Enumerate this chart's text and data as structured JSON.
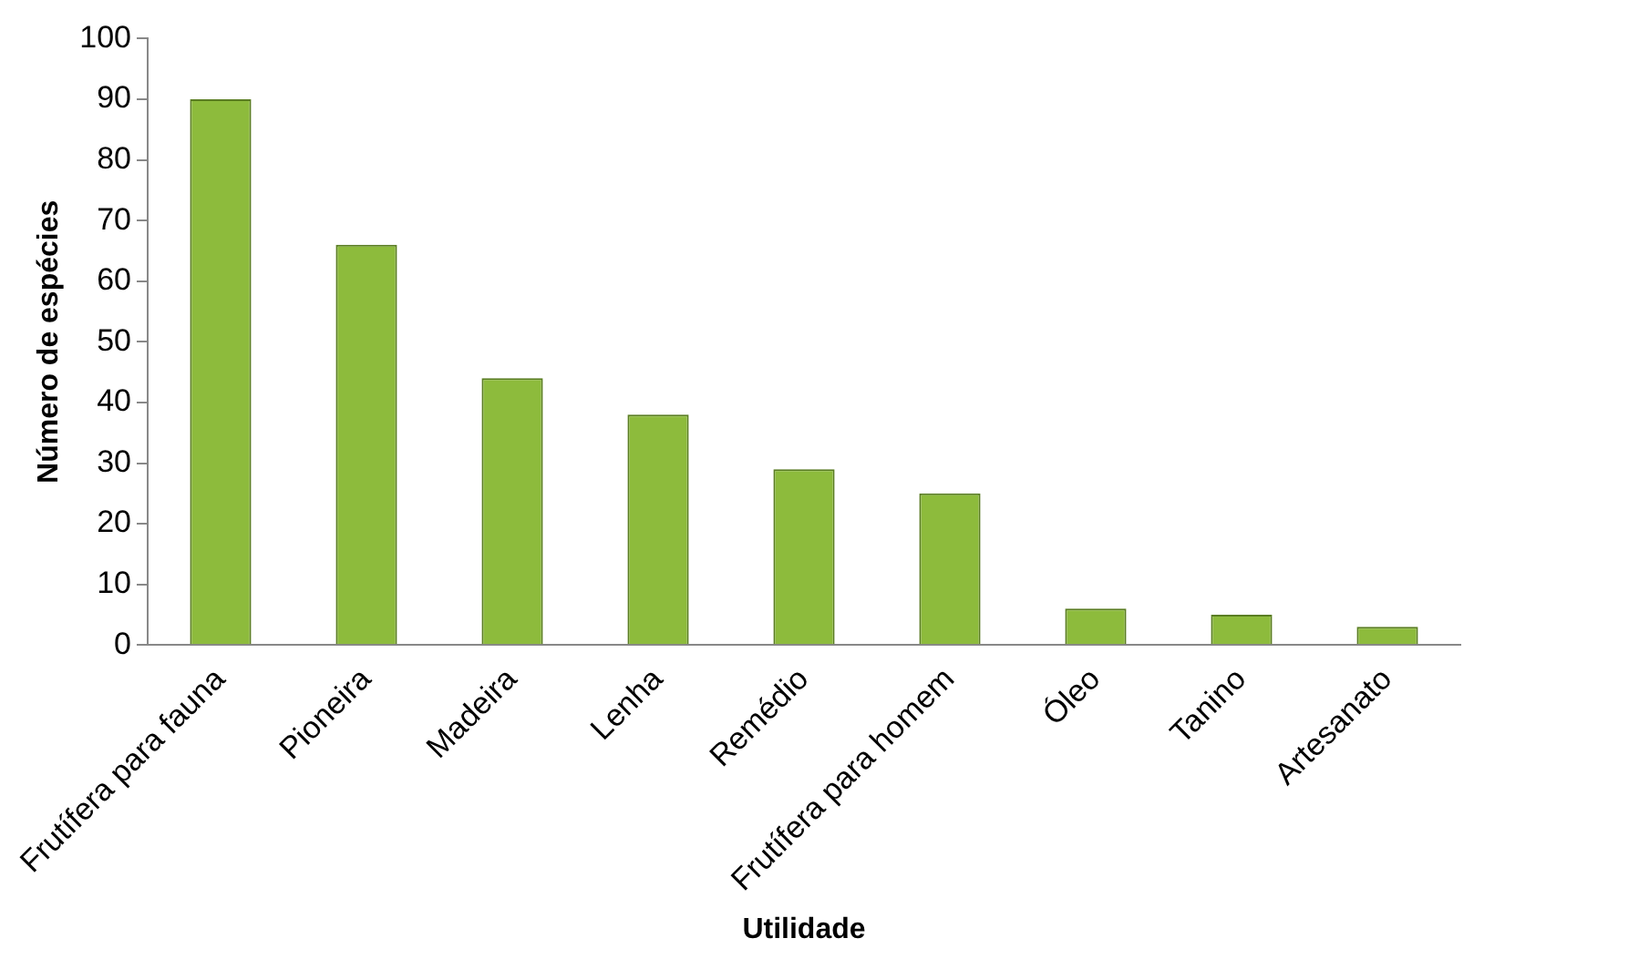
{
  "chart_data": {
    "type": "bar",
    "xlabel": "Utilidade",
    "ylabel": "Número de espécies",
    "categories": [
      "Frutífera para fauna",
      "Pioneira",
      "Madeira",
      "Lenha",
      "Remédio",
      "Frutífera para homem",
      "Óleo",
      "Tanino",
      "Artesanato"
    ],
    "values": [
      90,
      66,
      44,
      38,
      29,
      25,
      6,
      5,
      3
    ],
    "color": "#8dbb3c",
    "ylim": [
      0,
      100
    ],
    "yticks": [
      0,
      10,
      20,
      30,
      40,
      50,
      60,
      70,
      80,
      90,
      100
    ],
    "grid": false,
    "legend": false
  }
}
